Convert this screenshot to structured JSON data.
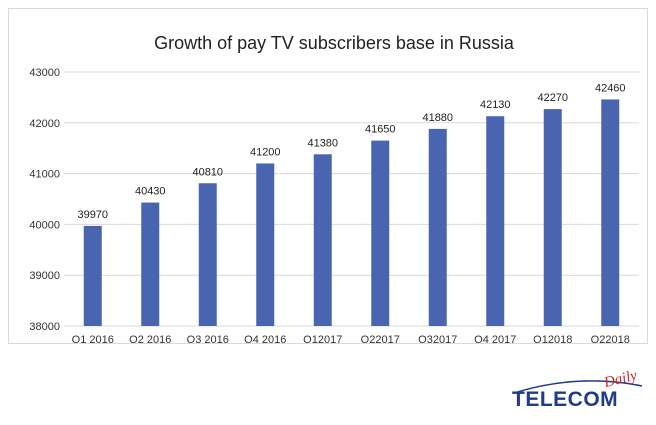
{
  "chart_data": {
    "type": "bar",
    "title": "Growth of pay TV subscribers base in Russia",
    "categories": [
      "Q1 2016",
      "Q2 2016",
      "Q3 2016",
      "Q4 2016",
      "Q12017",
      "Q22017",
      "Q32017",
      "Q4 2017",
      "Q12018",
      "Q22018"
    ],
    "values": [
      39970,
      40430,
      40810,
      41200,
      41380,
      41650,
      41880,
      42130,
      42270,
      42460
    ],
    "ylim": [
      38000,
      43000
    ],
    "yticks": [
      38000,
      39000,
      40000,
      41000,
      42000,
      43000
    ],
    "grid": true,
    "legend": "none",
    "bar_color": "#4a65b0"
  },
  "logo": {
    "main": "TELECOM",
    "accent": "Daily",
    "main_color": "#1f3b8a",
    "accent_color": "#c62828"
  }
}
